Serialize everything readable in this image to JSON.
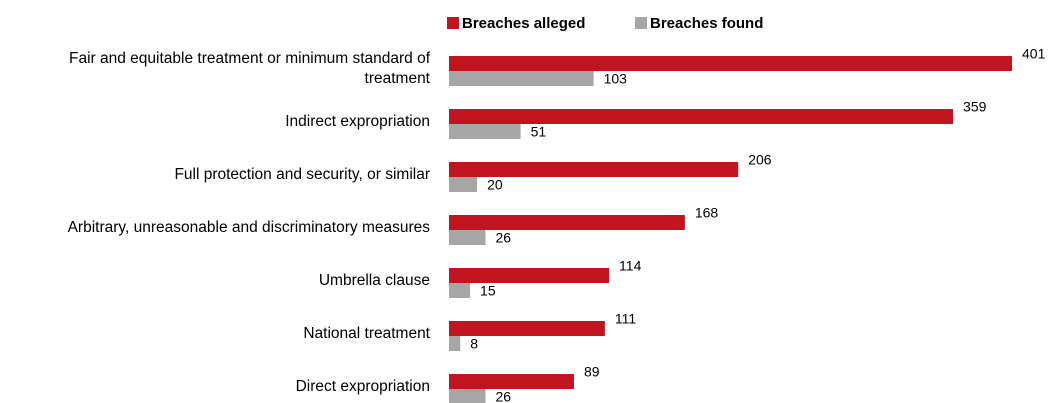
{
  "chart_data": {
    "type": "bar",
    "orientation": "horizontal",
    "categories": [
      "Fair and equitable treatment or minimum standard of treatment",
      "Indirect expropriation",
      "Full protection and security, or similar",
      "Arbitrary, unreasonable and discriminatory measures",
      "Umbrella clause",
      "National treatment",
      "Direct expropriation"
    ],
    "series": [
      {
        "name": "Breaches alleged",
        "color": "#c0141f",
        "values": [
          401,
          359,
          206,
          168,
          114,
          111,
          89
        ]
      },
      {
        "name": "Breaches found",
        "color": "#a6a6a6",
        "values": [
          103,
          51,
          20,
          26,
          15,
          8,
          26
        ]
      }
    ],
    "xlim": [
      0,
      401
    ],
    "legend": "top"
  }
}
